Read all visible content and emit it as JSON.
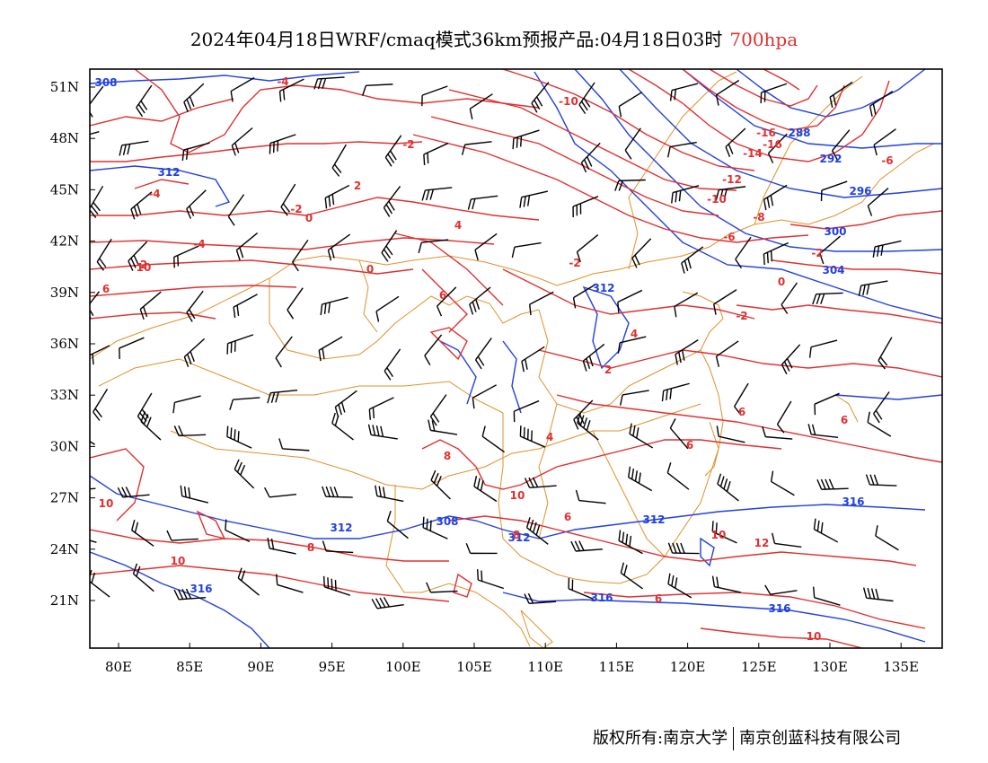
{
  "title": {
    "main": "2024年04月18日WRF/cmaq模式36km预报产品:04月18日03时",
    "level": "700hpa"
  },
  "axes": {
    "lat_labels": [
      "51N",
      "48N",
      "45N",
      "42N",
      "39N",
      "36N",
      "33N",
      "30N",
      "27N",
      "24N",
      "21N"
    ],
    "lon_labels": [
      "80E",
      "85E",
      "90E",
      "95E",
      "100E",
      "105E",
      "110E",
      "115E",
      "120E",
      "125E",
      "130E",
      "135E"
    ]
  },
  "chart_data": {
    "type": "map",
    "lon_range": [
      78,
      138
    ],
    "lat_range": [
      18,
      52
    ],
    "height_contour_labels_blue": [
      "308",
      "312",
      "288",
      "292",
      "296",
      "300",
      "304",
      "312",
      "308",
      "312",
      "312",
      "312",
      "316",
      "316",
      "316",
      "316"
    ],
    "temperature_contour_labels_red": [
      "-4",
      "-10",
      "-16",
      "-16",
      "-14",
      "-2",
      "-12",
      "-10",
      "-6",
      "-4",
      "2",
      "-2",
      "0",
      "4",
      "-8",
      "-6",
      "-2",
      "-2",
      "-4",
      "2",
      "0",
      "6",
      "0",
      "-2",
      "6",
      "4",
      "2",
      "6",
      "6",
      "4",
      "6",
      "8",
      "6",
      "10",
      "10",
      "8",
      "10",
      "12",
      "6",
      "10",
      "10",
      "10",
      "8"
    ],
    "colors": {
      "height_contours": "#2040e0",
      "temperature_contours": "#e03030",
      "wind_barbs": "#000000",
      "boundaries": "#e0902a"
    }
  },
  "footer": {
    "left": "版权所有:南京大学",
    "right": "南京创蓝科技有限公司"
  }
}
